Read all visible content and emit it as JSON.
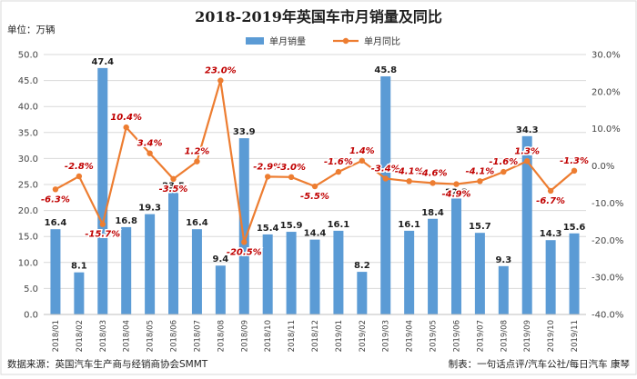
{
  "chart_data": {
    "type": "bar+line",
    "title": "2018-2019年英国车市月销量及同比",
    "y_left_unit": "单位：万辆",
    "categories": [
      "2018/01",
      "2018/02",
      "2018/03",
      "2018/04",
      "2018/05",
      "2018/06",
      "2018/07",
      "2018/08",
      "2018/09",
      "2018/10",
      "2018/11",
      "2018/12",
      "2019/01",
      "2019/02",
      "2019/03",
      "2019/04",
      "2019/05",
      "2019/06",
      "2019/07",
      "2019/08",
      "2019/09",
      "2019/10",
      "2019/11"
    ],
    "series": [
      {
        "name": "单月销量",
        "type": "bar",
        "axis": "left",
        "color": "#5b9bd5",
        "values": [
          16.4,
          8.1,
          47.4,
          16.8,
          19.3,
          23.5,
          16.4,
          9.4,
          33.9,
          15.4,
          15.9,
          14.4,
          16.1,
          8.2,
          45.8,
          16.1,
          18.4,
          22.3,
          15.7,
          9.3,
          34.3,
          14.3,
          15.6
        ],
        "labels": [
          "16.4",
          "8.1",
          "47.4",
          "16.8",
          "19.3",
          "23.5",
          "16.4",
          "9.4",
          "33.9",
          "15.4",
          "15.9",
          "14.4",
          "16.1",
          "8.2",
          "45.8",
          "16.1",
          "18.4",
          "22.3",
          "15.7",
          "9.3",
          "34.3",
          "14.3",
          "15.6"
        ]
      },
      {
        "name": "单月同比",
        "type": "line",
        "axis": "right",
        "color": "#ed7d31",
        "values": [
          -6.3,
          -2.8,
          -15.7,
          10.4,
          3.4,
          -3.5,
          1.2,
          23.0,
          -20.5,
          -2.9,
          -3.0,
          -5.5,
          -1.6,
          1.4,
          -3.4,
          -4.1,
          -4.6,
          -4.9,
          -4.1,
          -1.6,
          1.3,
          -6.7,
          -1.3
        ],
        "labels": [
          "-6.3%",
          "-2.8%",
          "-15.7%",
          "10.4%",
          "3.4%",
          "-3.5%",
          "1.2%",
          "23.0%",
          "-20.5%",
          "-2.9%",
          "-3.0%",
          "-5.5%",
          "-1.6%",
          "1.4%",
          "-3.4%",
          "-4.1%",
          "-4.6%",
          "-4.9%",
          "-4.1%",
          "-1.6%",
          "1.3%",
          "-6.7%",
          "-1.3%"
        ]
      }
    ],
    "y_left": {
      "min": 0,
      "max": 50,
      "step": 5,
      "ticks": [
        "0.0",
        "5.0",
        "10.0",
        "15.0",
        "20.0",
        "25.0",
        "30.0",
        "35.0",
        "40.0",
        "45.0",
        "50.0"
      ]
    },
    "y_right": {
      "min": -40,
      "max": 30,
      "step": 10,
      "ticks": [
        "-40.0%",
        "-30.0%",
        "-20.0%",
        "-10.0%",
        "0.0%",
        "10.0%",
        "20.0%",
        "30.0%"
      ]
    },
    "grid": true,
    "legend_position": "top"
  },
  "footer": {
    "source": "数据来源：英国汽车生产商与经销商协会SMMT",
    "credit": "制表：一句话点评/汽车公社/每日汽车 康琴"
  }
}
